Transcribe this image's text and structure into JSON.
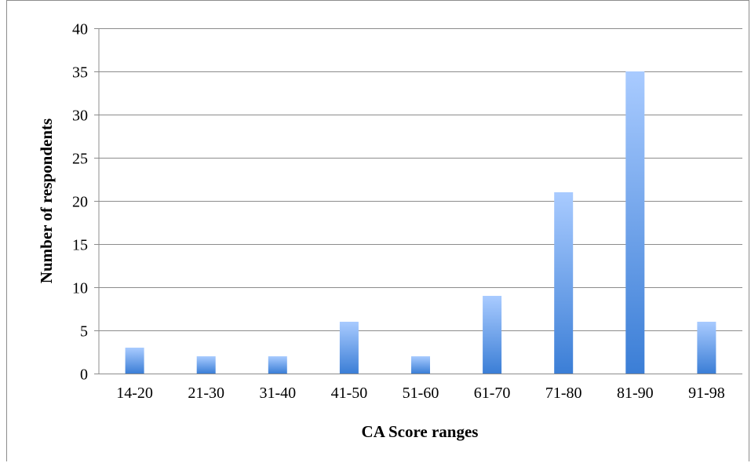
{
  "chart_data": {
    "type": "bar",
    "title": "",
    "xlabel": "CA Score ranges",
    "ylabel": "Number of respondents",
    "categories": [
      "14-20",
      "21-30",
      "31-40",
      "41-50",
      "51-60",
      "61-70",
      "71-80",
      "81-90",
      "91-98"
    ],
    "series": [
      {
        "values": [
          3,
          2,
          2,
          6,
          2,
          9,
          21,
          35,
          6
        ]
      }
    ],
    "ylim": [
      0,
      40
    ],
    "yticks": [
      0,
      5,
      10,
      15,
      20,
      25,
      30,
      35,
      40
    ],
    "grid": true,
    "legend": "none",
    "colors": {
      "bar_top": "#a9cbff",
      "bar_bottom": "#3b7ed6",
      "grid": "#8c8c8c",
      "axis": "#8c8c8c"
    }
  }
}
